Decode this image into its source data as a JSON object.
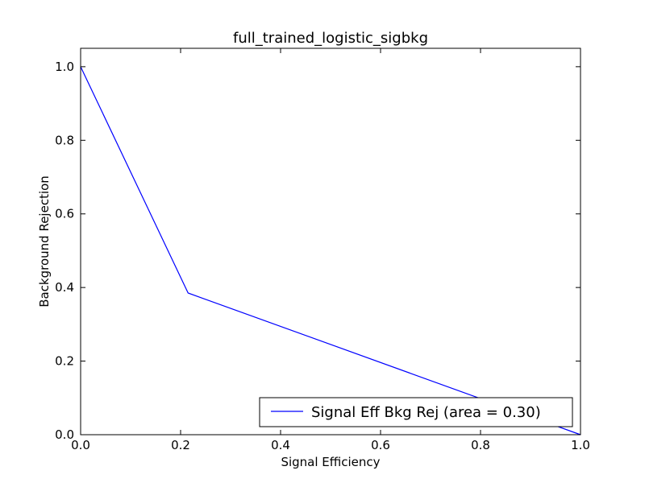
{
  "chart_data": {
    "type": "line",
    "title": "full_trained_logistic_sigbkg",
    "xlabel": "Signal Efficiency",
    "ylabel": "Background Rejection",
    "xlim": [
      0.0,
      1.0
    ],
    "ylim": [
      0.0,
      1.05
    ],
    "xticks": [
      0.0,
      0.2,
      0.4,
      0.6,
      0.8,
      1.0
    ],
    "xtick_labels": [
      "0.0",
      "0.2",
      "0.4",
      "0.6",
      "0.8",
      "1.0"
    ],
    "yticks": [
      0.0,
      0.2,
      0.4,
      0.6,
      0.8,
      1.0
    ],
    "ytick_labels": [
      "0.0",
      "0.2",
      "0.4",
      "0.6",
      "0.8",
      "1.0"
    ],
    "grid": false,
    "legend_position": "lower-right",
    "series": [
      {
        "name": "Signal Eff Bkg Rej (area = 0.30)",
        "color": "#0000ff",
        "x": [
          0.0,
          0.215,
          1.0
        ],
        "y": [
          1.0,
          0.385,
          0.0
        ]
      }
    ]
  }
}
